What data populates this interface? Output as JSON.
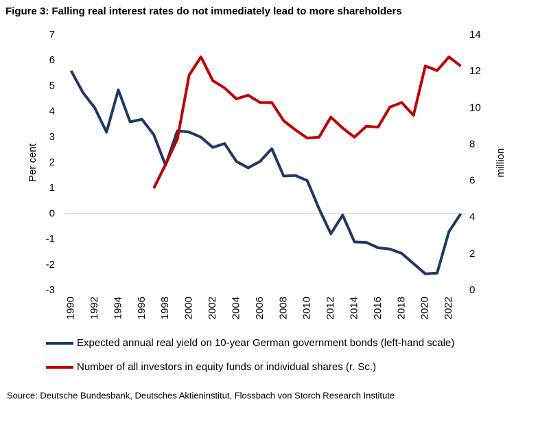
{
  "chart_data": {
    "type": "line",
    "title": "Figure 3: Falling real interest rates do not immediately lead to more shareholders",
    "ylabel": "Per cent",
    "y2label": "million",
    "source": "Source: Deutsche Bundesbank, Deutsches Aktieninstitut, Flossbach von Storch Research Institute",
    "x": [
      1990,
      1991,
      1992,
      1993,
      1994,
      1995,
      1996,
      1997,
      1998,
      1999,
      2000,
      2001,
      2002,
      2003,
      2004,
      2005,
      2006,
      2007,
      2008,
      2009,
      2010,
      2011,
      2012,
      2013,
      2014,
      2015,
      2016,
      2017,
      2018,
      2019,
      2020,
      2021,
      2022,
      2023
    ],
    "xlim": [
      1989.5,
      2023.5
    ],
    "xticks": [
      1990,
      1992,
      1994,
      1996,
      1998,
      2000,
      2002,
      2004,
      2006,
      2008,
      2010,
      2012,
      2014,
      2016,
      2018,
      2020,
      2022
    ],
    "ylim": [
      -3,
      7
    ],
    "yticks": [
      -3,
      -2,
      -1,
      0,
      1,
      2,
      3,
      4,
      5,
      6,
      7
    ],
    "y2lim": [
      0,
      14
    ],
    "y2ticks": [
      0,
      2,
      4,
      6,
      8,
      10,
      12,
      14
    ],
    "series": [
      {
        "name": "Expected annual real yield on 10-year German government bonds (left-hand scale)",
        "color": "#1f3864",
        "values": [
          5.6,
          4.75,
          4.15,
          3.2,
          4.85,
          3.6,
          3.7,
          3.1,
          1.9,
          3.25,
          3.2,
          3.0,
          2.6,
          2.75,
          2.05,
          1.8,
          2.05,
          2.55,
          1.48,
          1.5,
          1.3,
          0.2,
          -0.78,
          -0.05,
          -1.1,
          -1.12,
          -1.33,
          -1.38,
          -1.55,
          -1.95,
          -2.35,
          -2.32,
          -0.7,
          0.0
        ]
      },
      {
        "name": "Number of all investors in equity funds or individual shares (r. Sc.)",
        "color": "#c00000",
        "axis": "y2",
        "values": [
          null,
          null,
          null,
          null,
          null,
          null,
          null,
          5.6,
          6.9,
          8.3,
          11.8,
          12.8,
          11.5,
          11.1,
          10.5,
          10.7,
          10.3,
          10.3,
          9.3,
          8.8,
          8.35,
          8.4,
          9.5,
          8.9,
          8.4,
          9.0,
          8.95,
          10.05,
          10.3,
          9.6,
          12.3,
          12.05,
          12.8,
          12.3
        ]
      }
    ]
  }
}
